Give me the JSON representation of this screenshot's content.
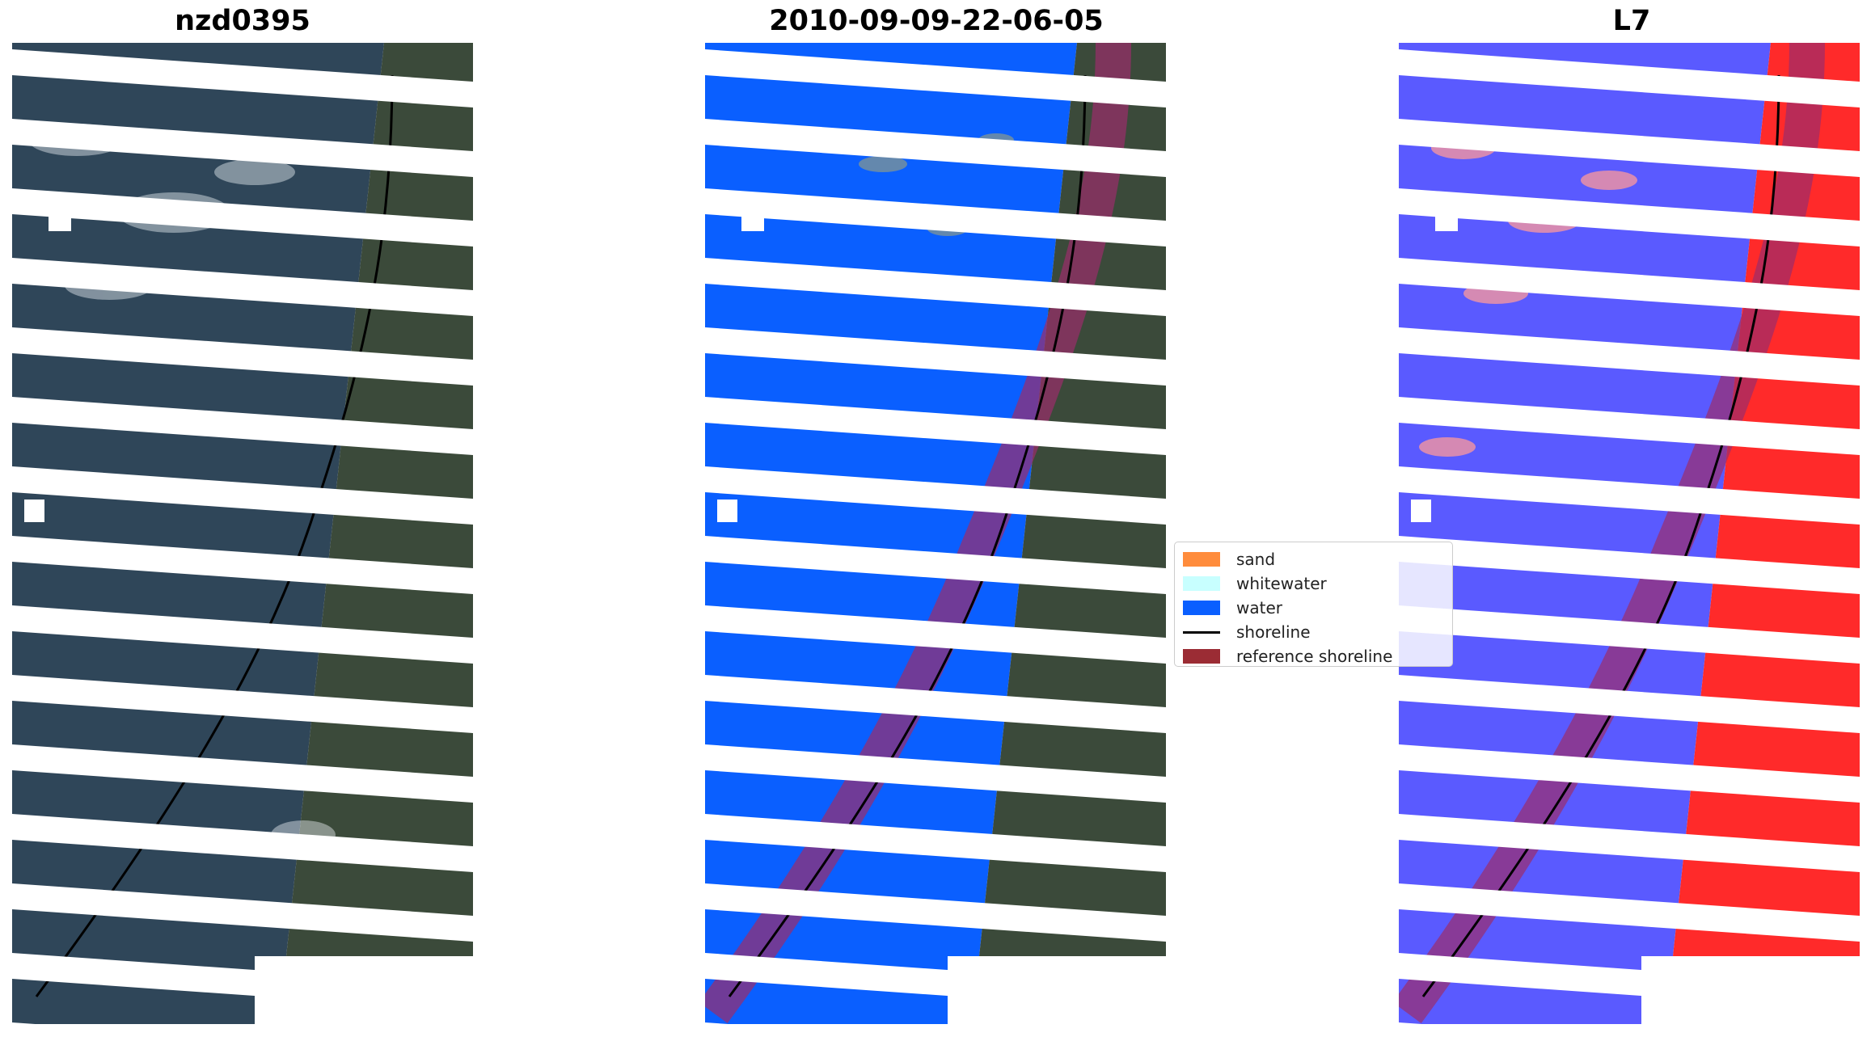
{
  "panels": [
    {
      "title": "nzd0395",
      "mode": "rgb"
    },
    {
      "title": "2010-09-09-22-06-05",
      "mode": "classified"
    },
    {
      "title": "L7",
      "mode": "index"
    }
  ],
  "legend": {
    "items": [
      {
        "label": "sand",
        "kind": "patch",
        "color": "#ff8c3c"
      },
      {
        "label": "whitewater",
        "kind": "patch",
        "color": "#c8ffff"
      },
      {
        "label": "water",
        "kind": "patch",
        "color": "#0a5fff"
      },
      {
        "label": "shoreline",
        "kind": "line",
        "color": "#000000"
      },
      {
        "label": "reference shoreline",
        "kind": "patch",
        "color": "#9b2c34"
      }
    ]
  },
  "colors": {
    "sea": "#2f4659",
    "land": "#3b4a3a",
    "water_class": "#0a5fff",
    "index_water": "#5a5aff",
    "index_land": "#ff2a2a",
    "reference_buffer": "#9b2c6b"
  }
}
